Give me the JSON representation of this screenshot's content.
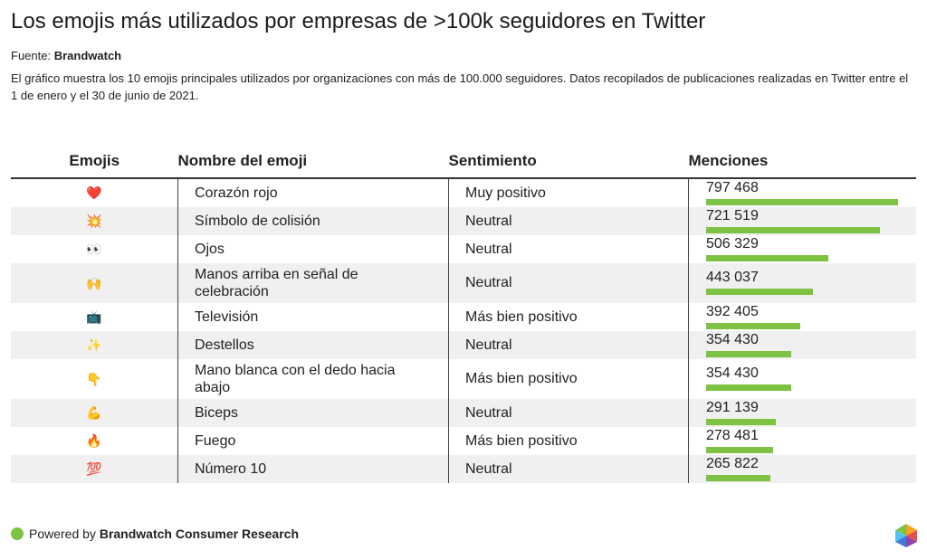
{
  "header": {
    "title": "Los emojis más utilizados por empresas de >100k seguidores en Twitter",
    "source_label": "Fuente:",
    "source": "Brandwatch",
    "description": "El gráfico muestra los 10 emojis principales utilizados por organizaciones con más de 100.000 seguidores. Datos recopilados de publicaciones realizadas en Twitter entre el 1 de enero y el 30 de junio de 2021."
  },
  "table": {
    "columns": [
      "Emojis",
      "Nombre del emoji",
      "Sentimiento",
      "Menciones"
    ],
    "bar_color": "#7dc242",
    "rows": [
      {
        "emoji": "❤️",
        "name": "Corazón rojo",
        "sentiment": "Muy positivo",
        "mentions": 797468,
        "mentions_label": "797 468"
      },
      {
        "emoji": "💥",
        "name": "Símbolo de colisión",
        "sentiment": "Neutral",
        "mentions": 721519,
        "mentions_label": "721 519"
      },
      {
        "emoji": "👀",
        "name": "Ojos",
        "sentiment": "Neutral",
        "mentions": 506329,
        "mentions_label": "506 329"
      },
      {
        "emoji": "🙌",
        "name": "Manos arriba en señal de celebración",
        "sentiment": "Neutral",
        "mentions": 443037,
        "mentions_label": "443 037"
      },
      {
        "emoji": "📺",
        "name": "Televisión",
        "sentiment": "Más bien positivo",
        "mentions": 392405,
        "mentions_label": "392 405"
      },
      {
        "emoji": "✨",
        "name": "Destellos",
        "sentiment": "Neutral",
        "mentions": 354430,
        "mentions_label": "354 430"
      },
      {
        "emoji": "👇",
        "name": "Mano blanca con el dedo hacia abajo",
        "sentiment": "Más bien positivo",
        "mentions": 354430,
        "mentions_label": "354 430"
      },
      {
        "emoji": "💪",
        "name": "Biceps",
        "sentiment": "Neutral",
        "mentions": 291139,
        "mentions_label": "291 139"
      },
      {
        "emoji": "🔥",
        "name": "Fuego",
        "sentiment": "Más bien positivo",
        "mentions": 278481,
        "mentions_label": "278 481"
      },
      {
        "emoji": "💯",
        "name": "Número 10",
        "sentiment": "Neutral",
        "mentions": 265822,
        "mentions_label": "265 822"
      }
    ]
  },
  "footer": {
    "prefix": "Powered by",
    "brand": "Brandwatch Consumer Research"
  }
}
